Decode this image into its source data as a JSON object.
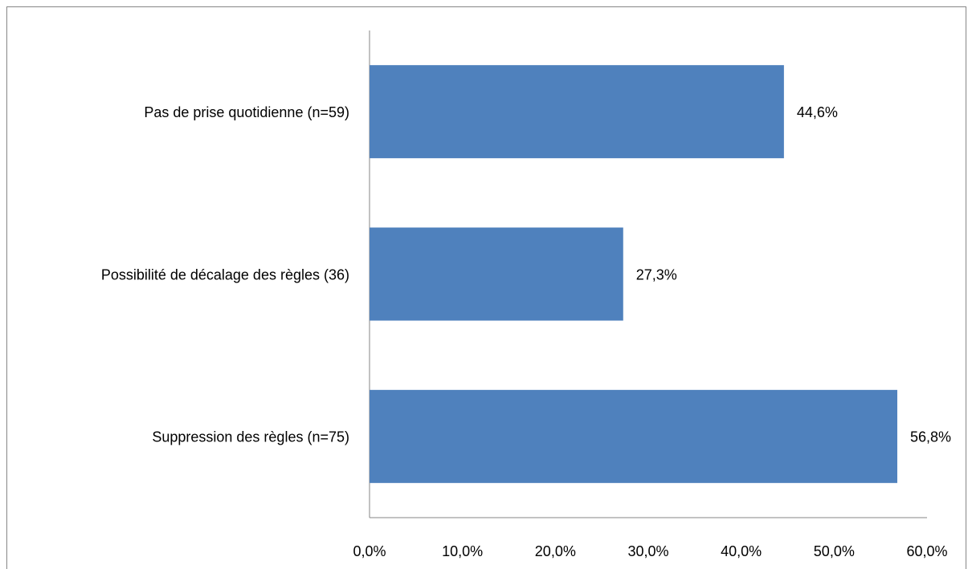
{
  "chart_data": {
    "type": "bar",
    "orientation": "horizontal",
    "categories": [
      "Pas de prise quotidienne (n=59)",
      "Possibilité de décalage des règles (36)",
      "Suppression des règles (n=75)"
    ],
    "values": [
      44.6,
      27.3,
      56.8
    ],
    "value_labels": [
      "44,6%",
      "27,3%",
      "56,8%"
    ],
    "color": "#4f81bd",
    "xlim": [
      0,
      60
    ],
    "xticks": [
      {
        "value": 0,
        "label": "0,0%"
      },
      {
        "value": 10,
        "label": "10,0%"
      },
      {
        "value": 20,
        "label": "20,0%"
      },
      {
        "value": 30,
        "label": "30,0%"
      },
      {
        "value": 40,
        "label": "40,0%"
      },
      {
        "value": 50,
        "label": "50,0%"
      },
      {
        "value": 60,
        "label": "60,0%"
      }
    ],
    "grid": false
  }
}
